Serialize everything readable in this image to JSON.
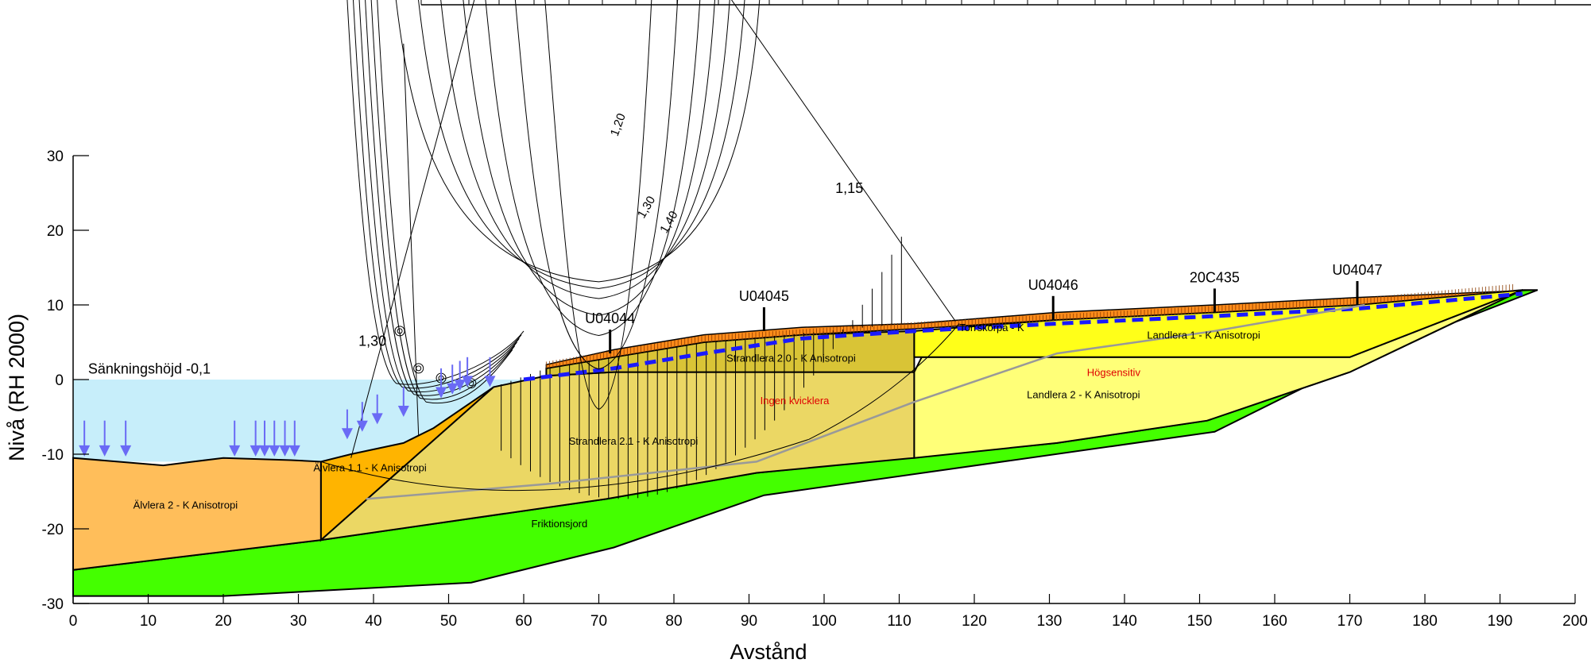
{
  "chart_data": {
    "type": "cross-section",
    "xlabel": "Avstånd",
    "ylabel": "Nivå (RH 2000)",
    "xlim": [
      0,
      200
    ],
    "ylim": [
      -30,
      30
    ],
    "x_ticks": [
      0,
      10,
      20,
      30,
      40,
      50,
      60,
      70,
      80,
      90,
      100,
      110,
      120,
      130,
      140,
      150,
      160,
      170,
      180,
      190,
      200
    ],
    "y_ticks": [
      -30,
      -20,
      -10,
      0,
      10,
      20,
      30
    ],
    "water_level": {
      "label": "Sänkningshöjd -0,1",
      "level": 0
    },
    "layers": [
      {
        "name": "friktionsjord",
        "label": "Friktionsjord",
        "color": "#44ff00"
      },
      {
        "name": "alvlera-2",
        "label": "Älvlera 2 - K Anisotropi",
        "color": "#ffbe5a"
      },
      {
        "name": "alvlera-1-1",
        "label": "Älvlera 1.1 - K Anisotropi",
        "color": "#ffb400"
      },
      {
        "name": "strandlera-2-1",
        "label": "Strandlera 2.1 - K  Anisotropi",
        "color": "#ebd764"
      },
      {
        "name": "strandlera-2-0",
        "label": "Strandlera 2.0 - K  Anisotropi",
        "color": "#d9c436"
      },
      {
        "name": "landlera-1",
        "label": "Landlera 1 - K Anisotropi",
        "color": "#ffff19"
      },
      {
        "name": "landlera-2",
        "label": "Landlera 2 - K Anisotropi",
        "color": "#ffff78"
      },
      {
        "name": "torrskorpa",
        "label": "Torrskorpa - K",
        "color": "#ff8c1a"
      }
    ],
    "annotations": {
      "ingen_kvicklera": "Ingen kvicklera",
      "hogsensitiv": "Högsensitiv"
    },
    "boreholes": [
      {
        "id": "U04044",
        "x": 71.5,
        "y": 3.5
      },
      {
        "id": "U04045",
        "x": 92,
        "y": 6.5
      },
      {
        "id": "U04046",
        "x": 130.5,
        "y": 8.0
      },
      {
        "id": "20C435",
        "x": 152,
        "y": 9.0
      },
      {
        "id": "U04047",
        "x": 171,
        "y": 10.0
      }
    ],
    "factor_of_safety_labels": [
      "1,20",
      "1,30",
      "1,40",
      "1,15",
      "1,30"
    ]
  }
}
